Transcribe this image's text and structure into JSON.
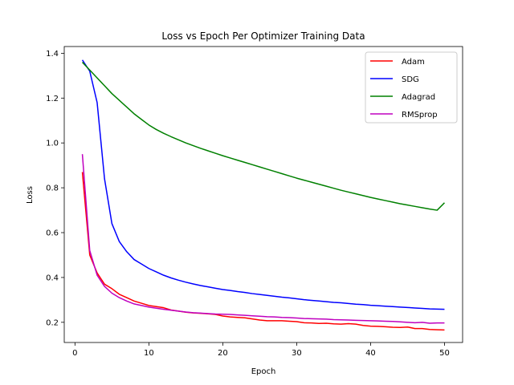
{
  "chart_data": {
    "type": "line",
    "title": "Loss vs Epoch Per Optimizer Training Data",
    "xlabel": "Epoch",
    "ylabel": "Loss",
    "xlim": [
      -1.45,
      52.45
    ],
    "ylim": [
      0.11,
      1.43
    ],
    "xticks": [
      0,
      10,
      20,
      30,
      40,
      50
    ],
    "yticks": [
      0.2,
      0.4,
      0.6,
      0.8,
      1.0,
      1.2,
      1.4
    ],
    "xtick_labels": [
      "0",
      "10",
      "20",
      "30",
      "40",
      "50"
    ],
    "ytick_labels": [
      "0.2",
      "0.4",
      "0.6",
      "0.8",
      "1.0",
      "1.2",
      "1.4"
    ],
    "grid": false,
    "legend_position": "top-right",
    "x": [
      1,
      2,
      3,
      4,
      5,
      6,
      7,
      8,
      9,
      10,
      11,
      12,
      13,
      14,
      15,
      16,
      17,
      18,
      19,
      20,
      21,
      22,
      23,
      24,
      25,
      26,
      27,
      28,
      29,
      30,
      31,
      32,
      33,
      34,
      35,
      36,
      37,
      38,
      39,
      40,
      41,
      42,
      43,
      44,
      45,
      46,
      47,
      48,
      49,
      50
    ],
    "series": [
      {
        "name": "Adam",
        "color": "#ff0000",
        "values": [
          0.87,
          0.5,
          0.42,
          0.37,
          0.35,
          0.325,
          0.31,
          0.295,
          0.285,
          0.275,
          0.27,
          0.265,
          0.255,
          0.25,
          0.245,
          0.242,
          0.24,
          0.238,
          0.235,
          0.228,
          0.224,
          0.222,
          0.22,
          0.215,
          0.21,
          0.207,
          0.207,
          0.207,
          0.205,
          0.203,
          0.198,
          0.197,
          0.195,
          0.196,
          0.193,
          0.192,
          0.194,
          0.192,
          0.186,
          0.183,
          0.182,
          0.18,
          0.178,
          0.177,
          0.179,
          0.172,
          0.172,
          0.168,
          0.167,
          0.166
        ]
      },
      {
        "name": "SDG",
        "color": "#0000ff",
        "values": [
          1.37,
          1.32,
          1.18,
          0.84,
          0.64,
          0.56,
          0.515,
          0.48,
          0.46,
          0.44,
          0.425,
          0.41,
          0.398,
          0.388,
          0.379,
          0.371,
          0.364,
          0.358,
          0.352,
          0.346,
          0.342,
          0.337,
          0.333,
          0.328,
          0.324,
          0.32,
          0.316,
          0.312,
          0.309,
          0.305,
          0.301,
          0.298,
          0.295,
          0.292,
          0.289,
          0.287,
          0.284,
          0.281,
          0.279,
          0.276,
          0.274,
          0.272,
          0.27,
          0.268,
          0.266,
          0.264,
          0.262,
          0.26,
          0.259,
          0.258
        ]
      },
      {
        "name": "Adagrad",
        "color": "#008000",
        "values": [
          1.36,
          1.325,
          1.29,
          1.255,
          1.22,
          1.19,
          1.16,
          1.13,
          1.105,
          1.08,
          1.06,
          1.043,
          1.028,
          1.014,
          1.0,
          0.988,
          0.976,
          0.965,
          0.954,
          0.943,
          0.933,
          0.923,
          0.913,
          0.903,
          0.893,
          0.883,
          0.873,
          0.863,
          0.853,
          0.843,
          0.834,
          0.825,
          0.816,
          0.807,
          0.798,
          0.789,
          0.781,
          0.773,
          0.765,
          0.757,
          0.75,
          0.743,
          0.736,
          0.729,
          0.723,
          0.717,
          0.711,
          0.705,
          0.7,
          0.733
        ]
      },
      {
        "name": "RMSprop",
        "color": "#bf00bf",
        "values": [
          0.95,
          0.52,
          0.41,
          0.36,
          0.33,
          0.31,
          0.295,
          0.282,
          0.275,
          0.268,
          0.263,
          0.258,
          0.254,
          0.25,
          0.246,
          0.243,
          0.241,
          0.239,
          0.237,
          0.236,
          0.235,
          0.233,
          0.231,
          0.229,
          0.227,
          0.225,
          0.224,
          0.222,
          0.221,
          0.219,
          0.217,
          0.216,
          0.215,
          0.214,
          0.212,
          0.211,
          0.21,
          0.209,
          0.208,
          0.207,
          0.206,
          0.205,
          0.204,
          0.202,
          0.2,
          0.198,
          0.2,
          0.196,
          0.197,
          0.197
        ]
      }
    ]
  }
}
